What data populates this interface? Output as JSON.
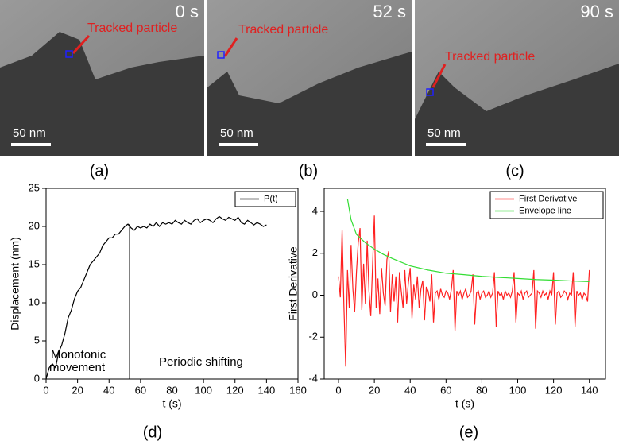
{
  "panels": [
    {
      "time": "0 s",
      "annotation": "Tracked particle",
      "scale_bar": "50 nm",
      "label": "(a)"
    },
    {
      "time": "52 s",
      "annotation": "Tracked particle",
      "scale_bar": "50 nm",
      "label": "(b)"
    },
    {
      "time": "90 s",
      "annotation": "Tracked particle",
      "scale_bar": "50 nm",
      "label": "(c)"
    }
  ],
  "chart_data": [
    {
      "type": "line",
      "panel_label": "(d)",
      "xlabel": "t (s)",
      "ylabel": "Displacement (nm)",
      "xlim": [
        0,
        160
      ],
      "ylim": [
        0,
        25
      ],
      "xticks": [
        0,
        20,
        40,
        60,
        80,
        100,
        120,
        140,
        160
      ],
      "yticks": [
        0,
        5,
        10,
        15,
        20,
        25
      ],
      "legend": "upper right",
      "divider_x": 53,
      "annotations": [
        "Monotonic",
        "movement",
        "Periodic shifting"
      ],
      "series": [
        {
          "name": "P(t)",
          "color": "#000000",
          "x": [
            0,
            2,
            4,
            6,
            8,
            10,
            12,
            14,
            16,
            18,
            20,
            22,
            24,
            26,
            28,
            30,
            32,
            34,
            36,
            38,
            40,
            42,
            44,
            46,
            48,
            50,
            52,
            54,
            56,
            58,
            60,
            62,
            64,
            66,
            68,
            70,
            72,
            74,
            76,
            78,
            80,
            82,
            84,
            86,
            88,
            90,
            92,
            94,
            96,
            98,
            100,
            102,
            104,
            106,
            108,
            110,
            112,
            114,
            116,
            118,
            120,
            122,
            124,
            126,
            128,
            130,
            132,
            134,
            136,
            138,
            140
          ],
          "values": [
            0,
            1.5,
            2,
            1.5,
            3.5,
            4.5,
            6,
            8,
            9,
            10.5,
            11.5,
            12,
            13,
            14,
            15,
            15.5,
            16,
            16.5,
            17.5,
            18,
            18.5,
            18.5,
            19,
            19,
            19.5,
            20,
            20.3,
            19.8,
            19.5,
            20,
            19.8,
            20,
            19.8,
            20.3,
            20,
            20.5,
            20,
            20.5,
            20.3,
            20.5,
            20.3,
            20.8,
            20.5,
            20.3,
            20.8,
            20.5,
            20.3,
            20.8,
            21,
            20.5,
            20.8,
            21,
            20.8,
            20.5,
            21,
            21.3,
            21,
            20.8,
            21.2,
            21,
            20.8,
            21.2,
            20.5,
            20.3,
            20.8,
            20.5,
            20.2,
            20.5,
            20.3,
            20,
            20.2
          ]
        }
      ]
    },
    {
      "type": "line",
      "panel_label": "(e)",
      "xlabel": "t (s)",
      "ylabel": "First Derivative",
      "xlim": [
        -8,
        149
      ],
      "ylim": [
        -4,
        5.1
      ],
      "xticks": [
        0,
        20,
        40,
        60,
        80,
        100,
        120,
        140
      ],
      "yticks": [
        -4,
        -2,
        0,
        2,
        4
      ],
      "legend": "upper right",
      "series": [
        {
          "name": "First Derivative",
          "color": "#ff2020",
          "x": [
            0,
            1,
            2,
            3,
            4,
            5,
            6,
            7,
            8,
            9,
            10,
            11,
            12,
            13,
            14,
            15,
            16,
            17,
            18,
            19,
            20,
            21,
            22,
            23,
            24,
            25,
            26,
            27,
            28,
            29,
            30,
            31,
            32,
            33,
            34,
            35,
            36,
            37,
            38,
            39,
            40,
            41,
            42,
            43,
            44,
            45,
            46,
            47,
            48,
            49,
            50,
            51,
            52,
            53,
            54,
            55,
            56,
            57,
            58,
            59,
            60,
            61,
            62,
            63,
            64,
            65,
            66,
            67,
            68,
            69,
            70,
            71,
            72,
            73,
            74,
            75,
            76,
            77,
            78,
            79,
            80,
            81,
            82,
            83,
            84,
            85,
            86,
            87,
            88,
            89,
            90,
            91,
            92,
            93,
            94,
            95,
            96,
            97,
            98,
            99,
            100,
            101,
            102,
            103,
            104,
            105,
            106,
            107,
            108,
            109,
            110,
            111,
            112,
            113,
            114,
            115,
            116,
            117,
            118,
            119,
            120,
            121,
            122,
            123,
            124,
            125,
            126,
            127,
            128,
            129,
            130,
            131,
            132,
            133,
            134,
            135,
            136,
            137,
            138,
            139,
            140
          ],
          "values": [
            0.9,
            -0.1,
            3.1,
            -0.5,
            -3.4,
            1.2,
            -0.6,
            2.4,
            0.3,
            -0.8,
            1.1,
            2.5,
            3.2,
            -0.7,
            1.5,
            -0.4,
            2.6,
            0.2,
            -1.0,
            1.4,
            3.8,
            -0.6,
            0.8,
            -0.9,
            1.3,
            0.1,
            -0.5,
            1.7,
            2.1,
            -0.8,
            1.0,
            -0.3,
            0.9,
            -1.3,
            1.1,
            0.2,
            -0.6,
            1.2,
            -0.4,
            0.6,
            1.3,
            -1.1,
            0.5,
            -0.2,
            0.9,
            -0.6,
            0.3,
            0.7,
            -1.2,
            0.4,
            0.2,
            -0.3,
            1.0,
            -1.3,
            0.1,
            0.2,
            -0.2,
            0.3,
            0.0,
            -0.1,
            0.2,
            0.1,
            -0.2,
            0.3,
            1.2,
            -1.7,
            0.2,
            0.0,
            0.2,
            -0.2,
            0.1,
            0.3,
            -0.1,
            0.0,
            0.2,
            1.0,
            -1.4,
            0.1,
            0.2,
            -0.2,
            0.1,
            0.2,
            -0.1,
            0.0,
            0.2,
            -0.1,
            0.1,
            1.1,
            -1.5,
            0.2,
            0.0,
            0.1,
            -0.2,
            0.2,
            0.0,
            0.1,
            -0.1,
            0.2,
            1.1,
            -1.3,
            0.1,
            0.0,
            0.2,
            -0.2,
            0.1,
            0.2,
            -0.1,
            0.0,
            0.1,
            1.2,
            -1.6,
            0.2,
            0.1,
            -0.1,
            0.2,
            0.0,
            0.1,
            -0.2,
            0.2,
            0.0,
            1.1,
            -1.4,
            0.1,
            0.2,
            -0.1,
            0.0,
            0.2,
            0.1,
            -0.2,
            0.1,
            0.0,
            1.1,
            -1.5,
            0.2,
            0.0,
            0.1,
            -0.2,
            0.1,
            0.0,
            -0.3,
            1.2
          ]
        },
        {
          "name": "Envelope line",
          "color": "#33dd33",
          "x": [
            5,
            7,
            10,
            15,
            20,
            25,
            30,
            40,
            50,
            60,
            70,
            80,
            90,
            100,
            110,
            120,
            130,
            140
          ],
          "values": [
            4.6,
            3.6,
            2.9,
            2.5,
            2.2,
            1.95,
            1.75,
            1.4,
            1.2,
            1.05,
            0.98,
            0.9,
            0.85,
            0.8,
            0.75,
            0.72,
            0.68,
            0.65
          ]
        }
      ]
    }
  ]
}
